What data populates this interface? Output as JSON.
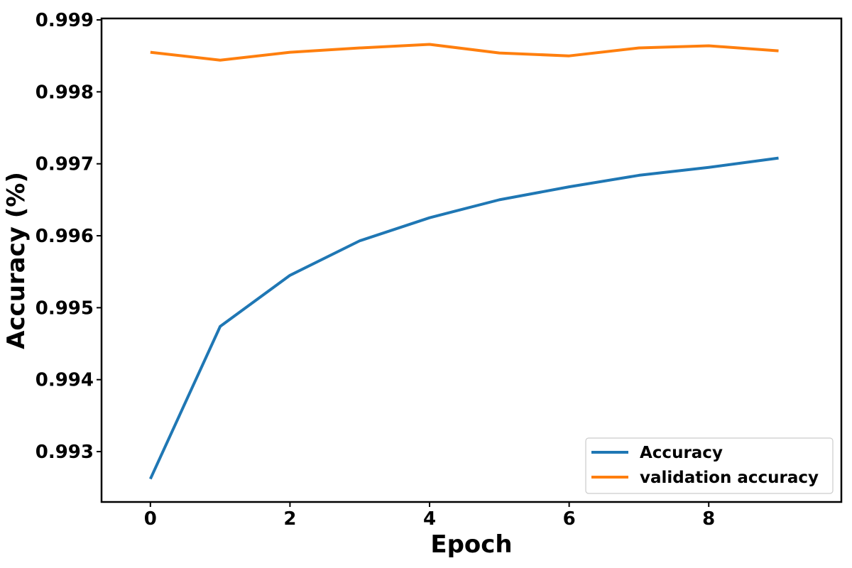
{
  "chart_data": {
    "type": "line",
    "title": "",
    "xlabel": "Epoch",
    "ylabel": "Accuracy (%)",
    "x": [
      0,
      1,
      2,
      3,
      4,
      5,
      6,
      7,
      8,
      9
    ],
    "xlim": [
      -0.7,
      9.9
    ],
    "ylim": [
      0.9923,
      0.99902
    ],
    "xticks": [
      0,
      2,
      4,
      6,
      8
    ],
    "xtick_labels": [
      "0",
      "2",
      "4",
      "6",
      "8"
    ],
    "yticks": [
      0.993,
      0.994,
      0.995,
      0.996,
      0.997,
      0.998,
      0.999
    ],
    "ytick_labels": [
      "0.993",
      "0.994",
      "0.995",
      "0.996",
      "0.997",
      "0.998",
      "0.999"
    ],
    "grid": false,
    "legend_position": "lower-right",
    "series": [
      {
        "name": "Accuracy",
        "color": "#1f77b4",
        "values": [
          0.99262,
          0.99474,
          0.99545,
          0.99593,
          0.99625,
          0.9965,
          0.99668,
          0.99684,
          0.99695,
          0.99708
        ]
      },
      {
        "name": "validation accuracy",
        "color": "#ff7f0e",
        "values": [
          0.99855,
          0.99844,
          0.99855,
          0.99861,
          0.99866,
          0.99854,
          0.9985,
          0.99861,
          0.99864,
          0.99857
        ]
      }
    ]
  }
}
